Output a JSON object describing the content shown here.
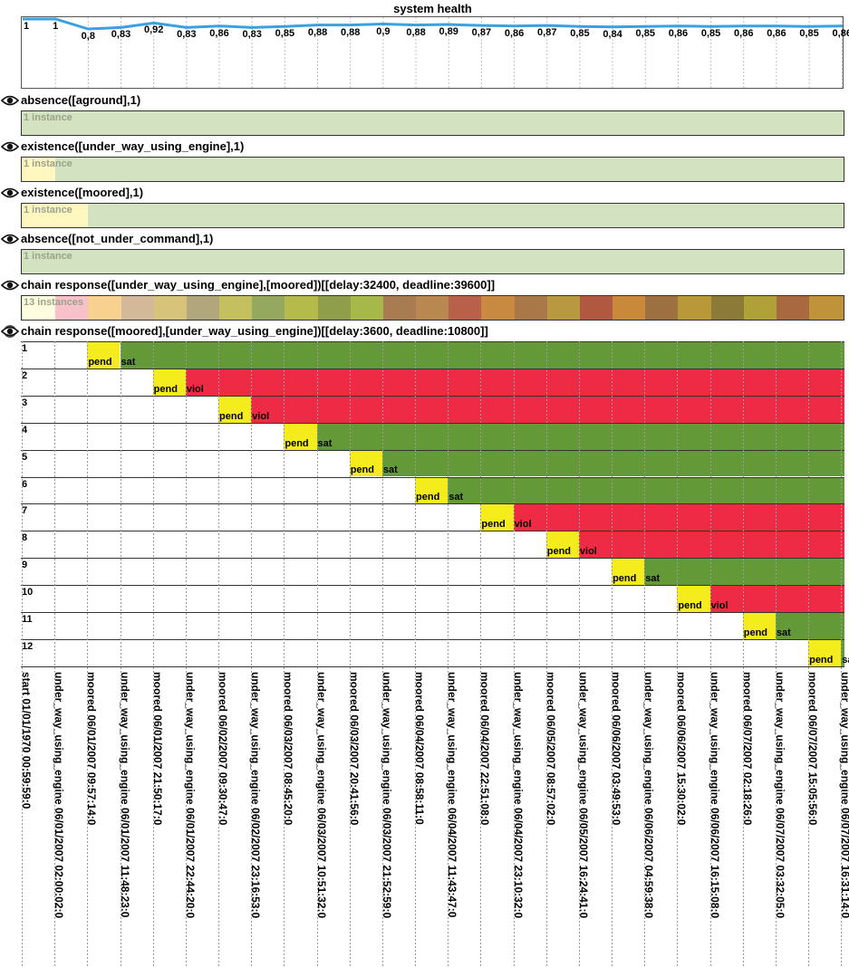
{
  "health": {
    "title": "system health",
    "values": [
      "1",
      "1",
      "0,8",
      "0,83",
      "0,92",
      "0,83",
      "0,86",
      "0,83",
      "0,85",
      "0,88",
      "0,88",
      "0,9",
      "0,88",
      "0,89",
      "0,87",
      "0,86",
      "0,87",
      "0,85",
      "0,84",
      "0,85",
      "0,86",
      "0,85",
      "0,86",
      "0,86",
      "0,85",
      "0,86"
    ],
    "series": [
      1,
      1,
      0.8,
      0.83,
      0.92,
      0.83,
      0.86,
      0.83,
      0.85,
      0.88,
      0.88,
      0.9,
      0.88,
      0.89,
      0.87,
      0.86,
      0.87,
      0.85,
      0.84,
      0.85,
      0.86,
      0.85,
      0.86,
      0.86,
      0.85,
      0.86
    ],
    "line_color": "#3aa0e0"
  },
  "constraints": [
    {
      "title": "absence([aground],1)",
      "instances": "1 instance",
      "icon": "eye-icon"
    },
    {
      "title": "existence([under_way_using_engine],1)",
      "instances": "1 instance",
      "icon": "eye-icon"
    },
    {
      "title": "existence([moored],1)",
      "instances": "1 instance",
      "icon": "eye-icon"
    },
    {
      "title": "absence([not_under_command],1)",
      "instances": "1 instance",
      "icon": "eye-icon"
    },
    {
      "title": "chain response([under_way_using_engine],[moored])[[delay:32400, deadline:39600]]",
      "instances": "13 instances",
      "icon": "eye-icon"
    },
    {
      "title": "chain response([moored],[under_way_using_engine])[[delay:3600, deadline:10800]]",
      "icon": "eye-icon-active"
    }
  ],
  "colors": {
    "sat": "#639a37",
    "viol": "#ee2a45",
    "pend": "#f5ec1e",
    "light_green": "#d3e2c0",
    "light_yellow": "#fff6c0"
  },
  "chain_row_colors": [
    "#fffde0",
    "#f8c0c8",
    "#f8d090",
    "#d4b89a",
    "#d7c47a",
    "#b2a77c",
    "#c4c060",
    "#95a860",
    "#b4bb4a",
    "#8e9e4a",
    "#a6b84a",
    "#a87b50",
    "#b88850",
    "#b8604a",
    "#c88a40",
    "#a87848",
    "#b89840",
    "#b05840",
    "#c88a3a",
    "#9c7040",
    "#b89838",
    "#8c7a38",
    "#b0a038",
    "#a86840",
    "#c0923a"
  ],
  "instance_rows": [
    {
      "num": "1",
      "pend": "pend",
      "result": "sat"
    },
    {
      "num": "2",
      "pend": "pend",
      "result": "viol"
    },
    {
      "num": "3",
      "pend": "pend",
      "result": "viol"
    },
    {
      "num": "4",
      "pend": "pend",
      "result": "sat"
    },
    {
      "num": "5",
      "pend": "pend",
      "result": "sat"
    },
    {
      "num": "6",
      "pend": "pend",
      "result": "sat"
    },
    {
      "num": "7",
      "pend": "pend",
      "result": "viol"
    },
    {
      "num": "8",
      "pend": "pend",
      "result": "viol"
    },
    {
      "num": "9",
      "pend": "pend",
      "result": "sat"
    },
    {
      "num": "10",
      "pend": "pend",
      "result": "viol"
    },
    {
      "num": "11",
      "pend": "pend",
      "result": "sat"
    },
    {
      "num": "12",
      "pend": "pend",
      "result": "sat"
    }
  ],
  "timeline": [
    "start 01/01/1970 00:59:59:0",
    "under_way_using_engine 06/01/2007 02:00:02:0",
    "moored 06/01/2007 09:57:14:0",
    "under_way_using_engine 06/01/2007 11:48:23:0",
    "moored 06/01/2007 21:50:17:0",
    "under_way_using_engine 06/01/2007 22:44:20:0",
    "moored 06/02/2007 09:30:47:0",
    "under_way_using_engine 06/02/2007 23:16:53:0",
    "moored 06/03/2007 08:45:20:0",
    "under_way_using_engine 06/03/2007 10:51:32:0",
    "moored 06/03/2007 20:41:56:0",
    "under_way_using_engine 06/03/2007 21:52:59:0",
    "moored 06/04/2007 08:58:11:0",
    "under_way_using_engine 06/04/2007 11:43:47:0",
    "moored 06/04/2007 22:51:08:0",
    "under_way_using_engine 06/04/2007 23:10:32:0",
    "moored 06/05/2007 08:57:02:0",
    "under_way_using_engine 06/05/2007 16:24:41:0",
    "moored 06/06/2007 03:49:53:0",
    "under_way_using_engine 06/06/2007 04:59:38:0",
    "moored 06/06/2007 15:30:02:0",
    "under_way_using_engine 06/06/2007 16:15:08:0",
    "moored 06/07/2007 02:18:26:0",
    "under_way_using_engine 06/07/2007 03:32:05:0",
    "moored 06/07/2007 15:05:56:0",
    "under_way_using_engine 06/07/2007 16:31:14:0"
  ]
}
